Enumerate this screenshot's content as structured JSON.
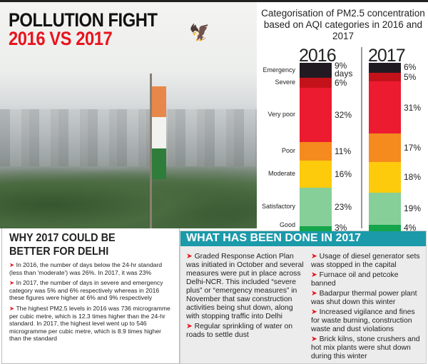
{
  "header": {
    "title_line1": "POLLUTION FIGHT",
    "title_line2": "2016 VS 2017"
  },
  "colors": {
    "title_red": "#e8141d",
    "teal": "#1b9aaa",
    "Emergency": "#221a22",
    "Severe": "#c4121b",
    "Very poor": "#ec1b30",
    "Poor": "#f58a1f",
    "Moderate": "#fdcb0c",
    "Satisfactory": "#86cf98",
    "Good": "#15a54a"
  },
  "chart_data": {
    "type": "bar",
    "stacked": true,
    "title": "Categorisation of PM2.5 concentration based on AQI categories in 2016 and 2017",
    "categories": [
      "Emergency",
      "Severe",
      "Very poor",
      "Poor",
      "Moderate",
      "Satisfactory",
      "Good"
    ],
    "series": [
      {
        "name": "2016",
        "values": [
          9,
          6,
          32,
          11,
          16,
          23,
          3
        ],
        "labels": [
          "9% days",
          "6%",
          "32%",
          "11%",
          "16%",
          "23%",
          "3%"
        ]
      },
      {
        "name": "2017",
        "values": [
          6,
          5,
          31,
          17,
          18,
          19,
          4
        ],
        "labels": [
          "6%",
          "5%",
          "31%",
          "17%",
          "18%",
          "19%",
          "4%"
        ]
      }
    ]
  },
  "why": {
    "title": "WHY 2017 COULD BE BETTER FOR DELHI",
    "points": [
      "In 2016, the number of days below the 24-hr standard (less than 'moderate') was 26%. In 2017, it was 23%",
      "In 2017, the number of days in severe and emergency category was 5% and 6% respectively whereas in 2016 these figures were higher at 6% and 9% respectively",
      "The highest PM2.5 levels in 2016 was 736 microgramme per cubic metre, which is 12.3 times higher than the 24-hr standard. In 2017, the highest level went up to 546 microgramme per cubic metre, which is 8.9 times higher than the standard"
    ]
  },
  "done": {
    "title": "WHAT HAS BEEN DONE IN 2017",
    "left": [
      "Graded Response Action Plan was initiated in October and several measures were put in place across Delhi-NCR. This included “severe plus” or “emergency measures” in November that saw construction activities being shut down, along with stopping traffic into Delhi",
      "Regular sprinkling of water on roads to settle dust"
    ],
    "right": [
      "Usage of diesel generator sets was stopped in the capital",
      "Furnace oil and petcoke banned",
      "Badarpur thermal power plant was shut down this winter",
      "Increased vigilance and fines for waste burning, construction waste and dust violations",
      "Brick kilns, stone crushers and hot mix plants were shut down during this winter"
    ]
  }
}
